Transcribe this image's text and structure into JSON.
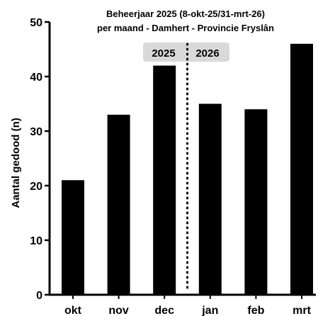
{
  "chart_data": {
    "type": "bar",
    "title": "Beheerjaar 2025 (8-okt-25/31-mrt-26)",
    "subtitle": "per maand - Damhert - Provincie Fryslân",
    "xlabel": "",
    "ylabel": "Aantal gedood (n)",
    "categories": [
      "okt",
      "nov",
      "dec",
      "jan",
      "feb",
      "mrt"
    ],
    "values": [
      21,
      33,
      42,
      35,
      34,
      46
    ],
    "ylim": [
      0,
      50
    ],
    "yticks": [
      0,
      10,
      20,
      30,
      40,
      50
    ],
    "bar_color": "#000000",
    "grid": false,
    "divider": {
      "between": [
        "dec",
        "jan"
      ],
      "style": "dotted",
      "left_label": "2025",
      "right_label": "2026",
      "label_box_color": "#d9d9d9"
    }
  }
}
